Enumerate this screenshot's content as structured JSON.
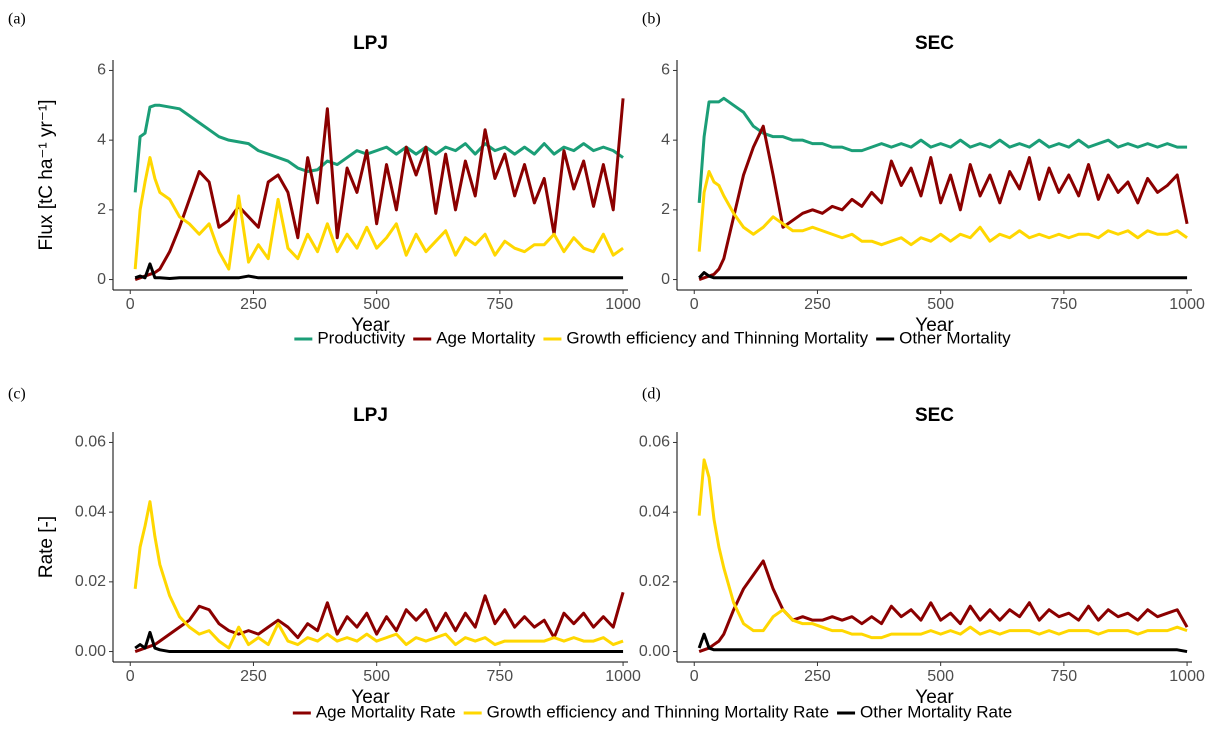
{
  "chart_data": [
    {
      "type": "line",
      "label": "(a)",
      "title": "LPJ",
      "xlabel": "Year",
      "ylabel": "Flux [tC ha⁻¹ yr⁻¹]",
      "legend": "bottom",
      "x": [
        10,
        20,
        30,
        40,
        50,
        60,
        80,
        100,
        120,
        140,
        160,
        180,
        200,
        220,
        240,
        260,
        280,
        300,
        320,
        340,
        360,
        380,
        400,
        420,
        440,
        460,
        480,
        500,
        520,
        540,
        560,
        580,
        600,
        620,
        640,
        660,
        680,
        700,
        720,
        740,
        760,
        780,
        800,
        820,
        840,
        860,
        880,
        900,
        920,
        940,
        960,
        980,
        1000
      ],
      "xlim": [
        -35,
        1010
      ],
      "xticks": [
        0,
        250,
        500,
        750,
        1000
      ],
      "ylim": [
        -0.3,
        6.3
      ],
      "yticks": [
        0,
        2,
        4,
        6
      ],
      "series": [
        {
          "name": "Productivity",
          "color": "#1b9e77",
          "values": [
            2.5,
            4.1,
            4.2,
            4.95,
            5.0,
            5.0,
            4.95,
            4.9,
            4.7,
            4.5,
            4.3,
            4.1,
            4.0,
            3.95,
            3.9,
            3.7,
            3.6,
            3.5,
            3.4,
            3.2,
            3.1,
            3.15,
            3.4,
            3.3,
            3.5,
            3.7,
            3.6,
            3.7,
            3.8,
            3.6,
            3.8,
            3.6,
            3.8,
            3.6,
            3.8,
            3.7,
            3.9,
            3.6,
            3.9,
            3.7,
            3.8,
            3.6,
            3.8,
            3.6,
            3.9,
            3.6,
            3.8,
            3.7,
            3.9,
            3.7,
            3.8,
            3.7,
            3.5
          ]
        },
        {
          "name": "Age Mortality",
          "color": "#8b0000",
          "values": [
            0,
            0.05,
            0.1,
            0.15,
            0.2,
            0.3,
            0.8,
            1.5,
            2.3,
            3.1,
            2.8,
            1.5,
            1.7,
            2.1,
            1.8,
            1.5,
            2.8,
            3.0,
            2.5,
            1.2,
            3.5,
            2.2,
            4.9,
            1.2,
            3.2,
            2.5,
            3.7,
            1.6,
            3.3,
            2.0,
            3.8,
            3.0,
            3.8,
            1.9,
            3.6,
            2.0,
            3.4,
            2.4,
            4.3,
            2.9,
            3.6,
            2.4,
            3.3,
            2.2,
            2.9,
            1.3,
            3.7,
            2.6,
            3.4,
            2.1,
            3.3,
            2.0,
            5.2
          ]
        },
        {
          "name": "Growth efficiency and Thinning Mortality",
          "color": "#ffd700",
          "values": [
            0.3,
            2.0,
            2.8,
            3.5,
            2.9,
            2.5,
            2.3,
            1.8,
            1.6,
            1.3,
            1.6,
            0.8,
            0.3,
            2.4,
            0.5,
            1.0,
            0.6,
            2.3,
            0.9,
            0.6,
            1.3,
            0.8,
            1.6,
            0.8,
            1.3,
            0.9,
            1.5,
            0.9,
            1.2,
            1.6,
            0.7,
            1.3,
            0.8,
            1.1,
            1.4,
            0.7,
            1.2,
            1.0,
            1.3,
            0.7,
            1.1,
            0.9,
            0.8,
            1.0,
            1.0,
            1.3,
            0.8,
            1.2,
            0.9,
            0.8,
            1.3,
            0.7,
            0.9
          ]
        },
        {
          "name": "Other Mortality",
          "color": "#000000",
          "values": [
            0.05,
            0.1,
            0.05,
            0.45,
            0.05,
            0.05,
            0.03,
            0.05,
            0.05,
            0.05,
            0.05,
            0.05,
            0.05,
            0.05,
            0.1,
            0.05,
            0.05,
            0.05,
            0.05,
            0.05,
            0.05,
            0.05,
            0.05,
            0.05,
            0.05,
            0.05,
            0.05,
            0.05,
            0.05,
            0.05,
            0.05,
            0.05,
            0.05,
            0.05,
            0.05,
            0.05,
            0.05,
            0.05,
            0.05,
            0.05,
            0.05,
            0.05,
            0.05,
            0.05,
            0.05,
            0.05,
            0.05,
            0.05,
            0.05,
            0.05,
            0.05,
            0.05,
            0.05
          ]
        }
      ]
    },
    {
      "type": "line",
      "label": "(b)",
      "title": "SEC",
      "xlabel": "Year",
      "x": [
        10,
        20,
        30,
        40,
        50,
        60,
        80,
        100,
        120,
        140,
        160,
        180,
        200,
        220,
        240,
        260,
        280,
        300,
        320,
        340,
        360,
        380,
        400,
        420,
        440,
        460,
        480,
        500,
        520,
        540,
        560,
        580,
        600,
        620,
        640,
        660,
        680,
        700,
        720,
        740,
        760,
        780,
        800,
        820,
        840,
        860,
        880,
        900,
        920,
        940,
        960,
        980,
        1000
      ],
      "xlim": [
        -35,
        1010
      ],
      "xticks": [
        0,
        250,
        500,
        750,
        1000
      ],
      "ylim": [
        -0.3,
        6.3
      ],
      "yticks": [
        0,
        2,
        4,
        6
      ],
      "series": [
        {
          "color": "#1b9e77",
          "values": [
            2.2,
            4.1,
            5.1,
            5.1,
            5.1,
            5.2,
            5.0,
            4.8,
            4.4,
            4.2,
            4.1,
            4.1,
            4.0,
            4.0,
            3.9,
            3.9,
            3.8,
            3.8,
            3.7,
            3.7,
            3.8,
            3.9,
            3.8,
            3.9,
            3.8,
            4.0,
            3.8,
            3.9,
            3.8,
            4.0,
            3.8,
            3.9,
            3.8,
            4.0,
            3.8,
            3.9,
            3.8,
            4.0,
            3.8,
            3.9,
            3.8,
            4.0,
            3.8,
            3.9,
            4.0,
            3.8,
            3.9,
            3.8,
            3.9,
            3.8,
            3.9,
            3.8,
            3.8
          ]
        },
        {
          "color": "#8b0000",
          "values": [
            0,
            0.05,
            0.1,
            0.15,
            0.3,
            0.6,
            1.8,
            3.0,
            3.8,
            4.4,
            3.0,
            1.5,
            1.7,
            1.9,
            2.0,
            1.9,
            2.1,
            2.0,
            2.3,
            2.1,
            2.5,
            2.2,
            3.4,
            2.7,
            3.2,
            2.4,
            3.5,
            2.2,
            3.0,
            2.0,
            3.3,
            2.4,
            3.0,
            2.2,
            3.1,
            2.6,
            3.5,
            2.3,
            3.2,
            2.5,
            3.0,
            2.4,
            3.3,
            2.3,
            3.0,
            2.5,
            2.8,
            2.2,
            2.9,
            2.5,
            2.7,
            3.0,
            1.6
          ]
        },
        {
          "color": "#ffd700",
          "values": [
            0.8,
            2.5,
            3.1,
            2.8,
            2.7,
            2.4,
            1.9,
            1.5,
            1.3,
            1.5,
            1.8,
            1.6,
            1.4,
            1.4,
            1.5,
            1.4,
            1.3,
            1.2,
            1.3,
            1.1,
            1.1,
            1.0,
            1.1,
            1.2,
            1.0,
            1.2,
            1.1,
            1.3,
            1.1,
            1.3,
            1.2,
            1.5,
            1.1,
            1.3,
            1.2,
            1.4,
            1.2,
            1.3,
            1.2,
            1.3,
            1.2,
            1.3,
            1.3,
            1.2,
            1.4,
            1.3,
            1.4,
            1.2,
            1.4,
            1.3,
            1.3,
            1.4,
            1.2
          ]
        },
        {
          "color": "#000000",
          "values": [
            0.05,
            0.2,
            0.1,
            0.05,
            0.05,
            0.05,
            0.05,
            0.05,
            0.05,
            0.05,
            0.05,
            0.05,
            0.05,
            0.05,
            0.05,
            0.05,
            0.05,
            0.05,
            0.05,
            0.05,
            0.05,
            0.05,
            0.05,
            0.05,
            0.05,
            0.05,
            0.05,
            0.05,
            0.05,
            0.05,
            0.05,
            0.05,
            0.05,
            0.05,
            0.05,
            0.05,
            0.05,
            0.05,
            0.05,
            0.05,
            0.05,
            0.05,
            0.05,
            0.05,
            0.05,
            0.05,
            0.05,
            0.05,
            0.05,
            0.05,
            0.05,
            0.05,
            0.05
          ]
        }
      ]
    },
    {
      "type": "line",
      "label": "(c)",
      "title": "LPJ",
      "xlabel": "Year",
      "ylabel": "Rate [-]",
      "legend": "bottom",
      "x": [
        10,
        20,
        30,
        40,
        50,
        60,
        80,
        100,
        120,
        140,
        160,
        180,
        200,
        220,
        240,
        260,
        280,
        300,
        320,
        340,
        360,
        380,
        400,
        420,
        440,
        460,
        480,
        500,
        520,
        540,
        560,
        580,
        600,
        620,
        640,
        660,
        680,
        700,
        720,
        740,
        760,
        780,
        800,
        820,
        840,
        860,
        880,
        900,
        920,
        940,
        960,
        980,
        1000
      ],
      "xlim": [
        -35,
        1010
      ],
      "xticks": [
        0,
        250,
        500,
        750,
        1000
      ],
      "ylim": [
        -0.003,
        0.063
      ],
      "yticks": [
        {
          "value": 0,
          "label": "0.00"
        },
        0.02,
        0.04,
        0.06
      ],
      "series": [
        {
          "name": "Age Mortality Rate",
          "color": "#8b0000",
          "values": [
            0,
            0.0005,
            0.001,
            0.0015,
            0.002,
            0.003,
            0.005,
            0.007,
            0.009,
            0.013,
            0.012,
            0.008,
            0.006,
            0.005,
            0.006,
            0.005,
            0.007,
            0.009,
            0.007,
            0.004,
            0.008,
            0.006,
            0.014,
            0.005,
            0.01,
            0.007,
            0.011,
            0.005,
            0.01,
            0.006,
            0.012,
            0.009,
            0.012,
            0.006,
            0.011,
            0.006,
            0.011,
            0.007,
            0.016,
            0.008,
            0.012,
            0.007,
            0.01,
            0.007,
            0.009,
            0.004,
            0.011,
            0.008,
            0.011,
            0.007,
            0.01,
            0.007,
            0.017
          ]
        },
        {
          "name": "Growth efficiency and Thinning Mortality Rate",
          "color": "#ffd700",
          "values": [
            0.018,
            0.03,
            0.036,
            0.043,
            0.033,
            0.025,
            0.016,
            0.01,
            0.007,
            0.005,
            0.006,
            0.003,
            0.001,
            0.007,
            0.002,
            0.004,
            0.002,
            0.008,
            0.003,
            0.002,
            0.004,
            0.003,
            0.005,
            0.003,
            0.004,
            0.003,
            0.005,
            0.003,
            0.004,
            0.005,
            0.002,
            0.004,
            0.003,
            0.004,
            0.005,
            0.002,
            0.004,
            0.003,
            0.004,
            0.002,
            0.003,
            0.003,
            0.003,
            0.003,
            0.003,
            0.004,
            0.003,
            0.004,
            0.003,
            0.003,
            0.004,
            0.002,
            0.003
          ]
        },
        {
          "name": "Other Mortality Rate",
          "color": "#000000",
          "values": [
            0.001,
            0.002,
            0.001,
            0.0055,
            0.001,
            0.0005,
            0,
            0,
            0,
            0,
            0,
            0,
            0,
            0,
            0,
            0,
            0,
            0,
            0,
            0,
            0,
            0,
            0,
            0,
            0,
            0,
            0,
            0,
            0,
            0,
            0,
            0,
            0,
            0,
            0,
            0,
            0,
            0,
            0,
            0,
            0,
            0,
            0,
            0,
            0,
            0,
            0,
            0,
            0,
            0,
            0,
            0,
            0
          ]
        }
      ]
    },
    {
      "type": "line",
      "label": "(d)",
      "title": "SEC",
      "xlabel": "Year",
      "x": [
        10,
        20,
        30,
        40,
        50,
        60,
        80,
        100,
        120,
        140,
        160,
        180,
        200,
        220,
        240,
        260,
        280,
        300,
        320,
        340,
        360,
        380,
        400,
        420,
        440,
        460,
        480,
        500,
        520,
        540,
        560,
        580,
        600,
        620,
        640,
        660,
        680,
        700,
        720,
        740,
        760,
        780,
        800,
        820,
        840,
        860,
        880,
        900,
        920,
        940,
        960,
        980,
        1000
      ],
      "xlim": [
        -35,
        1010
      ],
      "xticks": [
        0,
        250,
        500,
        750,
        1000
      ],
      "ylim": [
        -0.003,
        0.063
      ],
      "yticks": [
        {
          "value": 0,
          "label": "0.00"
        },
        0.02,
        0.04,
        0.06
      ],
      "series": [
        {
          "color": "#8b0000",
          "values": [
            0,
            0.0005,
            0.001,
            0.002,
            0.003,
            0.005,
            0.012,
            0.018,
            0.022,
            0.026,
            0.018,
            0.012,
            0.009,
            0.01,
            0.009,
            0.009,
            0.01,
            0.009,
            0.01,
            0.008,
            0.01,
            0.008,
            0.013,
            0.01,
            0.012,
            0.009,
            0.014,
            0.009,
            0.011,
            0.008,
            0.013,
            0.009,
            0.012,
            0.009,
            0.012,
            0.01,
            0.014,
            0.009,
            0.012,
            0.01,
            0.011,
            0.009,
            0.013,
            0.009,
            0.012,
            0.01,
            0.011,
            0.009,
            0.012,
            0.01,
            0.011,
            0.012,
            0.007
          ]
        },
        {
          "color": "#ffd700",
          "values": [
            0.039,
            0.055,
            0.05,
            0.038,
            0.03,
            0.024,
            0.014,
            0.008,
            0.006,
            0.006,
            0.01,
            0.012,
            0.009,
            0.008,
            0.008,
            0.007,
            0.006,
            0.006,
            0.005,
            0.005,
            0.004,
            0.004,
            0.005,
            0.005,
            0.005,
            0.005,
            0.006,
            0.005,
            0.006,
            0.005,
            0.007,
            0.005,
            0.006,
            0.005,
            0.006,
            0.006,
            0.006,
            0.005,
            0.006,
            0.005,
            0.006,
            0.006,
            0.006,
            0.005,
            0.006,
            0.006,
            0.006,
            0.005,
            0.006,
            0.006,
            0.006,
            0.007,
            0.006
          ]
        },
        {
          "color": "#000000",
          "values": [
            0.001,
            0.005,
            0.001,
            0.0005,
            0.0005,
            0.0005,
            0.0005,
            0.0005,
            0.0005,
            0.0005,
            0.0005,
            0.0005,
            0.0005,
            0.0005,
            0.0005,
            0.0005,
            0.0005,
            0.0005,
            0.0005,
            0.0005,
            0.0005,
            0.0005,
            0.0005,
            0.0005,
            0.0005,
            0.0005,
            0.0005,
            0.0005,
            0.0005,
            0.0005,
            0.0005,
            0.0005,
            0.0005,
            0.0005,
            0.0005,
            0.0005,
            0.0005,
            0.0005,
            0.0005,
            0.0005,
            0.0005,
            0.0005,
            0.0005,
            0.0005,
            0.0005,
            0.0005,
            0.0005,
            0.0005,
            0.0005,
            0.0005,
            0.0005,
            0.0005,
            0
          ]
        }
      ]
    }
  ]
}
